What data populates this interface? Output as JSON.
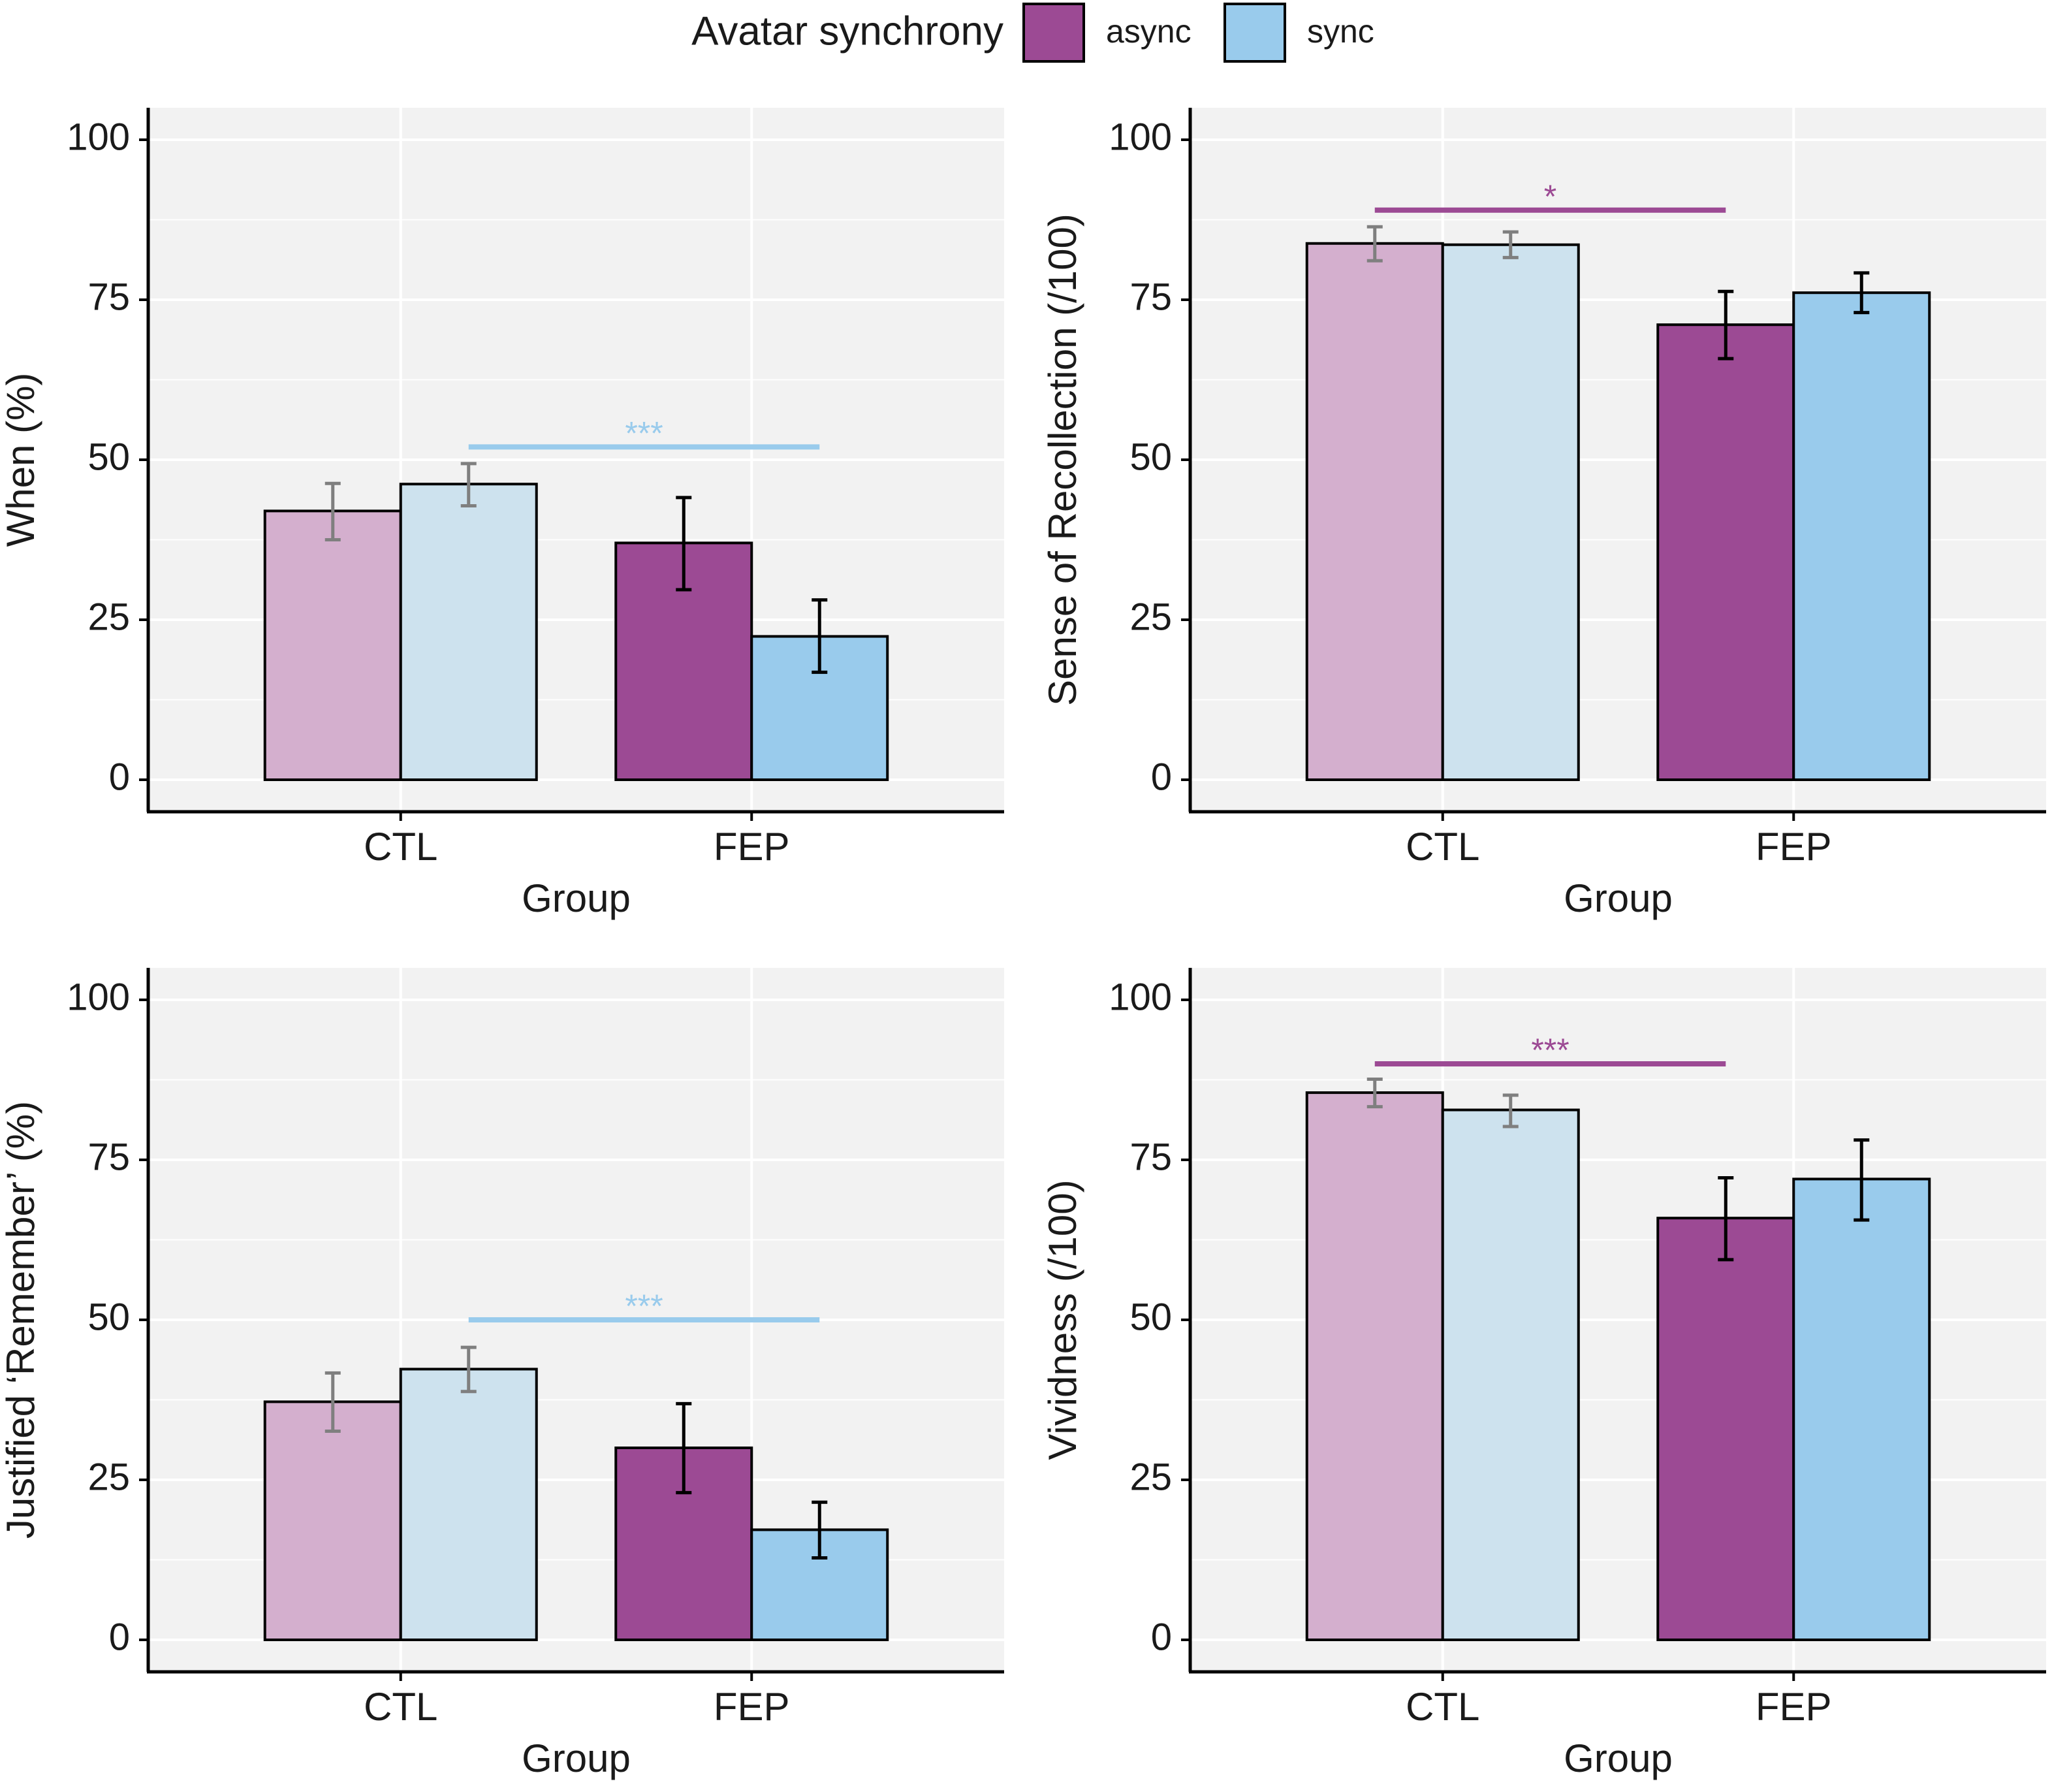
{
  "legend": {
    "title": "Avatar synchrony",
    "items": [
      {
        "key": "async",
        "label": "async",
        "color": "#9c4a94"
      },
      {
        "key": "sync",
        "label": "sync",
        "color": "#99cbec"
      }
    ]
  },
  "colors": {
    "async": "#9c4a94",
    "sync": "#99cbec",
    "async_faded": "#d4afce",
    "sync_faded": "#cde2ee",
    "panel_bg": "#f2f2f2",
    "grid": "#ffffff",
    "axis": "#000000"
  },
  "chart_data": [
    {
      "id": "when",
      "type": "bar",
      "title": "",
      "xlabel": "Group",
      "ylabel": "When (%)",
      "categories": [
        "CTL",
        "FEP"
      ],
      "ylim": [
        -5,
        105
      ],
      "yticks": [
        0,
        25,
        50,
        75,
        100
      ],
      "ytick_labels": [
        "0",
        "25",
        "50",
        "75",
        "100"
      ],
      "faded_category": "CTL",
      "series": [
        {
          "name": "async",
          "values": [
            42,
            37
          ],
          "err_low": [
            37.5,
            29.7
          ],
          "err_high": [
            46.3,
            44.1
          ]
        },
        {
          "name": "sync",
          "values": [
            46.2,
            22.4
          ],
          "err_low": [
            42.8,
            16.8
          ],
          "err_high": [
            49.4,
            28.1
          ]
        }
      ],
      "annotations": [
        {
          "label": "***",
          "series": "sync",
          "y": 52,
          "from": "CTL",
          "to": "FEP"
        }
      ]
    },
    {
      "id": "recollection",
      "type": "bar",
      "title": "",
      "xlabel": "Group",
      "ylabel": "Sense of Recollection (/100)",
      "categories": [
        "CTL",
        "FEP"
      ],
      "ylim": [
        -5,
        105
      ],
      "yticks": [
        0,
        25,
        50,
        75,
        100
      ],
      "ytick_labels": [
        "0",
        "25",
        "50",
        "75",
        "100"
      ],
      "faded_category": "CTL",
      "series": [
        {
          "name": "async",
          "values": [
            83.8,
            71.1
          ],
          "err_low": [
            81.1,
            65.8
          ],
          "err_high": [
            86.4,
            76.3
          ]
        },
        {
          "name": "sync",
          "values": [
            83.6,
            76.1
          ],
          "err_low": [
            81.6,
            73
          ],
          "err_high": [
            85.6,
            79.2
          ]
        }
      ],
      "annotations": [
        {
          "label": "*",
          "series": "async",
          "y": 89,
          "from": "CTL",
          "to": "FEP"
        }
      ]
    },
    {
      "id": "remember",
      "type": "bar",
      "title": "",
      "xlabel": "Group",
      "ylabel": "Justified ‘Remember’ (%)",
      "categories": [
        "CTL",
        "FEP"
      ],
      "ylim": [
        -5,
        105
      ],
      "yticks": [
        0,
        25,
        50,
        75,
        100
      ],
      "ytick_labels": [
        "0",
        "25",
        "50",
        "75",
        "100"
      ],
      "faded_category": "CTL",
      "series": [
        {
          "name": "async",
          "values": [
            37.2,
            30
          ],
          "err_low": [
            32.6,
            23
          ],
          "err_high": [
            41.7,
            36.9
          ]
        },
        {
          "name": "sync",
          "values": [
            42.3,
            17.2
          ],
          "err_low": [
            38.8,
            12.8
          ],
          "err_high": [
            45.7,
            21.5
          ]
        }
      ],
      "annotations": [
        {
          "label": "***",
          "series": "sync",
          "y": 50,
          "from": "CTL",
          "to": "FEP"
        }
      ]
    },
    {
      "id": "vividness",
      "type": "bar",
      "title": "",
      "xlabel": "Group",
      "ylabel": "Vividness (/100)",
      "categories": [
        "CTL",
        "FEP"
      ],
      "ylim": [
        -5,
        105
      ],
      "yticks": [
        0,
        25,
        50,
        75,
        100
      ],
      "ytick_labels": [
        "0",
        "25",
        "50",
        "75",
        "100"
      ],
      "faded_category": "CTL",
      "series": [
        {
          "name": "async",
          "values": [
            85.5,
            65.9
          ],
          "err_low": [
            83.3,
            59.4
          ],
          "err_high": [
            87.6,
            72.2
          ]
        },
        {
          "name": "sync",
          "values": [
            82.8,
            72
          ],
          "err_low": [
            80.2,
            65.6
          ],
          "err_high": [
            85.1,
            78.1
          ]
        }
      ],
      "annotations": [
        {
          "label": "***",
          "series": "async",
          "y": 90,
          "from": "CTL",
          "to": "FEP"
        }
      ]
    }
  ]
}
